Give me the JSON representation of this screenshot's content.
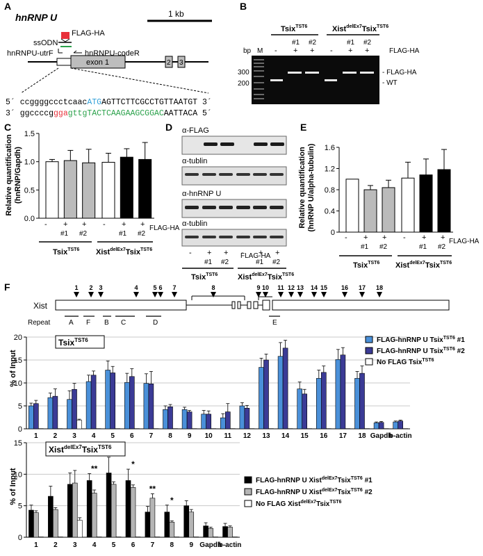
{
  "panelA": {
    "letter": "A",
    "title": "hnRNP U",
    "scale": "1 kb",
    "flag": "FLAG-HA",
    "ssodn": "ssODN",
    "primerF": "hnRNPU-utrF",
    "primerR": "hnRNPU-codeR",
    "exon1": "exon 1",
    "exon2": "2",
    "exon3": "3",
    "seq1": {
      "prefix": "5´ ",
      "a": "ccggggccctcaac",
      "atg": "ATG",
      "b": "AGTTCTTCGCCTGTTAATGT",
      "suffix": " 3´"
    },
    "seq2": {
      "prefix": "3´ ",
      "a": "ggccccg",
      "gga": "gga",
      "green": "gttgTACTCAAGAAGCGGAC",
      "b": "AATTACA",
      "suffix": " 5´"
    }
  },
  "panelB": {
    "letter": "B",
    "bp": "bp",
    "M": "M",
    "groupTsix": "Tsix",
    "groupTsixSup": "TST6",
    "groupXist": "Xist",
    "groupXistSup": "delEx7",
    "groupXistTsix": "Tsix",
    "groupXistTsixSup": "TST6",
    "reps": [
      "#1",
      "#2",
      "#1",
      "#2"
    ],
    "signs": [
      "-",
      "+",
      "+",
      "-",
      "+",
      "+"
    ],
    "flagLabel": "FLAG-HA",
    "size300": "300",
    "size200": "200",
    "bandFlag": "- FLAG-HA",
    "bandWT": "- WT"
  },
  "panelC": {
    "letter": "C",
    "ylabel1": "Relative quantification",
    "ylabel2": "(hnRNP/Gapdh)",
    "yticks": [
      "0.0",
      "0.5",
      "1.0",
      "1.5"
    ],
    "signs": [
      "-",
      "+",
      "+",
      "-",
      "+",
      "+"
    ],
    "reps": [
      "#1",
      "#2",
      "#1",
      "#2"
    ],
    "flagLabel": "FLAG-HA",
    "groupTsix": "Tsix",
    "groupTsixSup": "TST6",
    "groupXist": "Xist",
    "groupXistSup": "delEx7",
    "groupXistTsix": "Tsix",
    "groupXistTsixSup": "TST6"
  },
  "panelD": {
    "letter": "D",
    "blot1": "α-FLAG",
    "blot2": "α-tublin",
    "blot3": "α-hnRNP U",
    "blot4": "α-tublin",
    "signs": [
      "-",
      "+",
      "+",
      "-",
      "+",
      "+"
    ],
    "reps": [
      "#1",
      "#2",
      "#1",
      "#2"
    ],
    "flagLabel": "FLAG-HA",
    "groupTsix": "Tsix",
    "groupTsixSup": "TST6",
    "groupXist": "Xist",
    "groupXistSup": "delEx7",
    "groupXistTsix": "Tsix",
    "groupXistTsixSup": "TST6"
  },
  "panelE": {
    "letter": "E",
    "ylabel1": "Relative quantification",
    "ylabel2": "(hnRNP U/alpha-tubulin)",
    "yticks": [
      "0",
      "0.4",
      "0.8",
      "1.2",
      "1.6"
    ],
    "signs": [
      "-",
      "+",
      "+",
      "-",
      "+",
      "+"
    ],
    "reps": [
      "#1",
      "#2",
      "#1",
      "#2"
    ],
    "flagLabel": "FLAG-HA",
    "groupTsix": "Tsix",
    "groupTsixSup": "TST6",
    "groupXist": "Xist",
    "groupXistSup": "delEx7",
    "groupXistTsix": "Tsix",
    "groupXistTsixSup": "TST6"
  },
  "panelF": {
    "letter": "F",
    "xist": "Xist",
    "repeat": "Repeat",
    "repeats": [
      "A",
      "F",
      "B",
      "C",
      "D",
      "E"
    ],
    "positions": [
      "1",
      "2",
      "3",
      "4",
      "5",
      "6",
      "7",
      "8",
      "9",
      "10",
      "11",
      "12",
      "13",
      "14",
      "15",
      "16",
      "17",
      "18"
    ],
    "top": {
      "boxTitle": "Tsix",
      "boxSup": "TST6",
      "ylabel": "% of Input",
      "yticks": [
        "0",
        "5",
        "10",
        "15",
        "20"
      ],
      "legend": [
        {
          "label": "FLAG-hnRNP U Tsix",
          "sup": "TST6",
          "tail": " #1"
        },
        {
          "label": "FLAG-hnRNP U Tsix",
          "sup": "TST6",
          "tail": " #2"
        },
        {
          "label": "No FLAG Tsix",
          "sup": "TST6",
          "tail": ""
        }
      ]
    },
    "bottom": {
      "boxTitle": "Xist",
      "boxSup": "delEx7",
      "boxTitle2": "Tsix",
      "boxSup2": "TST6",
      "ylabel": "% of Input",
      "yticks": [
        "0",
        "5",
        "10",
        "15"
      ],
      "legend": [
        {
          "label": "FLAG-hnRNP U Xist",
          "sup": "delEx7",
          "label2": "Tsix",
          "sup2": "TST6",
          "tail": " #1"
        },
        {
          "label": "FLAG-hnRNP U Xist",
          "sup": "delEx7",
          "label2": "Tsix",
          "sup2": "TST6",
          "tail": " #2"
        },
        {
          "label": "No FLAG Xist",
          "sup": "delEx7",
          "label2": "Tsix",
          "sup2": "TST6",
          "tail": ""
        }
      ]
    }
  },
  "chart_data": [
    {
      "id": "C",
      "type": "bar",
      "ylabel": "Relative quantification (hnRNP/Gapdh)",
      "ylim": [
        0,
        1.5
      ],
      "categories": [
        "Tsix TST6 -",
        "Tsix TST6 +#1",
        "Tsix TST6 +#2",
        "XistdelEx7TsixTST6 -",
        "XistdelEx7TsixTST6 +#1",
        "XistdelEx7TsixTST6 +#2"
      ],
      "values": [
        1.0,
        1.02,
        0.98,
        0.99,
        1.08,
        1.04
      ],
      "errors": [
        0.04,
        0.18,
        0.24,
        0.16,
        0.15,
        0.3
      ],
      "colors": [
        "#ffffff",
        "#bbbbbb",
        "#bbbbbb",
        "#ffffff",
        "#000000",
        "#000000"
      ]
    },
    {
      "id": "E",
      "type": "bar",
      "ylabel": "Relative quantification (hnRNP U/alpha-tubulin)",
      "ylim": [
        0,
        1.6
      ],
      "categories": [
        "Tsix TST6 -",
        "Tsix TST6 +#1",
        "Tsix TST6 +#2",
        "XistdelEx7TsixTST6 -",
        "XistdelEx7TsixTST6 +#1",
        "XistdelEx7TsixTST6 +#2"
      ],
      "values": [
        1.0,
        0.8,
        0.84,
        1.02,
        1.08,
        1.18
      ],
      "errors": [
        0.0,
        0.08,
        0.14,
        0.3,
        0.3,
        0.38
      ],
      "colors": [
        "#ffffff",
        "#bbbbbb",
        "#bbbbbb",
        "#ffffff",
        "#000000",
        "#000000"
      ]
    },
    {
      "id": "F-top",
      "type": "bar",
      "ylabel": "% of Input",
      "ylim": [
        0,
        20
      ],
      "categories": [
        "1",
        "2",
        "3",
        "4",
        "5",
        "6",
        "7",
        "8",
        "9",
        "10",
        "11",
        "12",
        "13",
        "14",
        "15",
        "16",
        "17",
        "18",
        "Gapdh",
        "b-actin"
      ],
      "series": [
        {
          "name": "FLAG-hnRNP U TsixTST6 #1",
          "color": "#4a90d9",
          "values": [
            5.0,
            6.8,
            6.4,
            10.3,
            12.8,
            10.1,
            9.9,
            4.2,
            4.2,
            3.2,
            2.4,
            5.0,
            13.4,
            15.8,
            8.7,
            11.0,
            15.1,
            11.0,
            1.3,
            1.5
          ],
          "errors": [
            0.6,
            1.0,
            1.9,
            1.4,
            2.0,
            2.0,
            2.1,
            0.8,
            0.5,
            0.8,
            0.9,
            0.7,
            2.0,
            3.0,
            1.5,
            1.8,
            2.2,
            1.5,
            0.2,
            0.2
          ]
        },
        {
          "name": "FLAG-hnRNP U TsixTST6 #2",
          "color": "#3b3b96",
          "values": [
            5.5,
            7.1,
            8.6,
            11.7,
            12.2,
            11.4,
            9.8,
            4.8,
            3.7,
            3.2,
            3.7,
            4.5,
            15.0,
            17.6,
            7.6,
            12.3,
            16.1,
            12.1,
            1.4,
            1.7
          ],
          "errors": [
            0.7,
            1.6,
            1.3,
            0.9,
            1.4,
            1.7,
            2.7,
            0.5,
            0.3,
            0.7,
            1.8,
            0.6,
            1.3,
            1.7,
            1.0,
            1.4,
            1.6,
            1.6,
            0.2,
            0.2
          ]
        },
        {
          "name": "No FLAG TsixTST6",
          "color": "#ffffff",
          "values": [
            0.05,
            0.05,
            1.9,
            0.05,
            0.05,
            0.05,
            0.05,
            0.05,
            0.05,
            0.05,
            0.05,
            0.05,
            0.05,
            0.05,
            0.05,
            0.05,
            0.05,
            0.05,
            0.05,
            0.05
          ],
          "errors": [
            0,
            0,
            0.2,
            0,
            0,
            0,
            0,
            0,
            0,
            0,
            0,
            0,
            0,
            0,
            0,
            0,
            0,
            0,
            0,
            0
          ]
        }
      ]
    },
    {
      "id": "F-bottom",
      "type": "bar",
      "ylabel": "% of Input",
      "ylim": [
        0,
        15
      ],
      "categories": [
        "1",
        "2",
        "3",
        "4",
        "5",
        "6",
        "7",
        "8",
        "9",
        "Gapdh",
        "b-actin"
      ],
      "significance": [
        "",
        "",
        "",
        "**",
        "*",
        "*",
        "**",
        "*",
        "",
        "",
        ""
      ],
      "series": [
        {
          "name": "FLAG-hnRNP U XistdelEx7TsixTST6 #1",
          "color": "#000000",
          "values": [
            4.3,
            6.5,
            8.4,
            9.0,
            10.2,
            9.0,
            4.0,
            4.0,
            5.0,
            1.8,
            1.7
          ],
          "errors": [
            0.8,
            1.6,
            1.8,
            1.1,
            2.5,
            1.8,
            0.9,
            1.1,
            0.8,
            0.5,
            0.5
          ]
        },
        {
          "name": "FLAG-hnRNP U XistdelEx7TsixTST6 #2",
          "color": "#b5b5b5",
          "values": [
            3.9,
            4.4,
            8.6,
            7.0,
            8.4,
            7.9,
            6.2,
            2.4,
            4.0,
            1.4,
            1.6
          ],
          "errors": [
            0.3,
            0.3,
            2.0,
            0.5,
            0.4,
            0.4,
            0.7,
            0.2,
            0.4,
            0.2,
            0.2
          ]
        },
        {
          "name": "No FLAG XistdelEx7TsixTST6",
          "color": "#ffffff",
          "values": [
            0.05,
            0.05,
            2.7,
            0.05,
            0.05,
            0.05,
            0.05,
            0.05,
            0.05,
            0.05,
            0.05
          ],
          "errors": [
            0,
            0,
            0.4,
            0,
            0,
            0,
            0,
            0,
            0,
            0,
            0
          ]
        }
      ]
    }
  ]
}
